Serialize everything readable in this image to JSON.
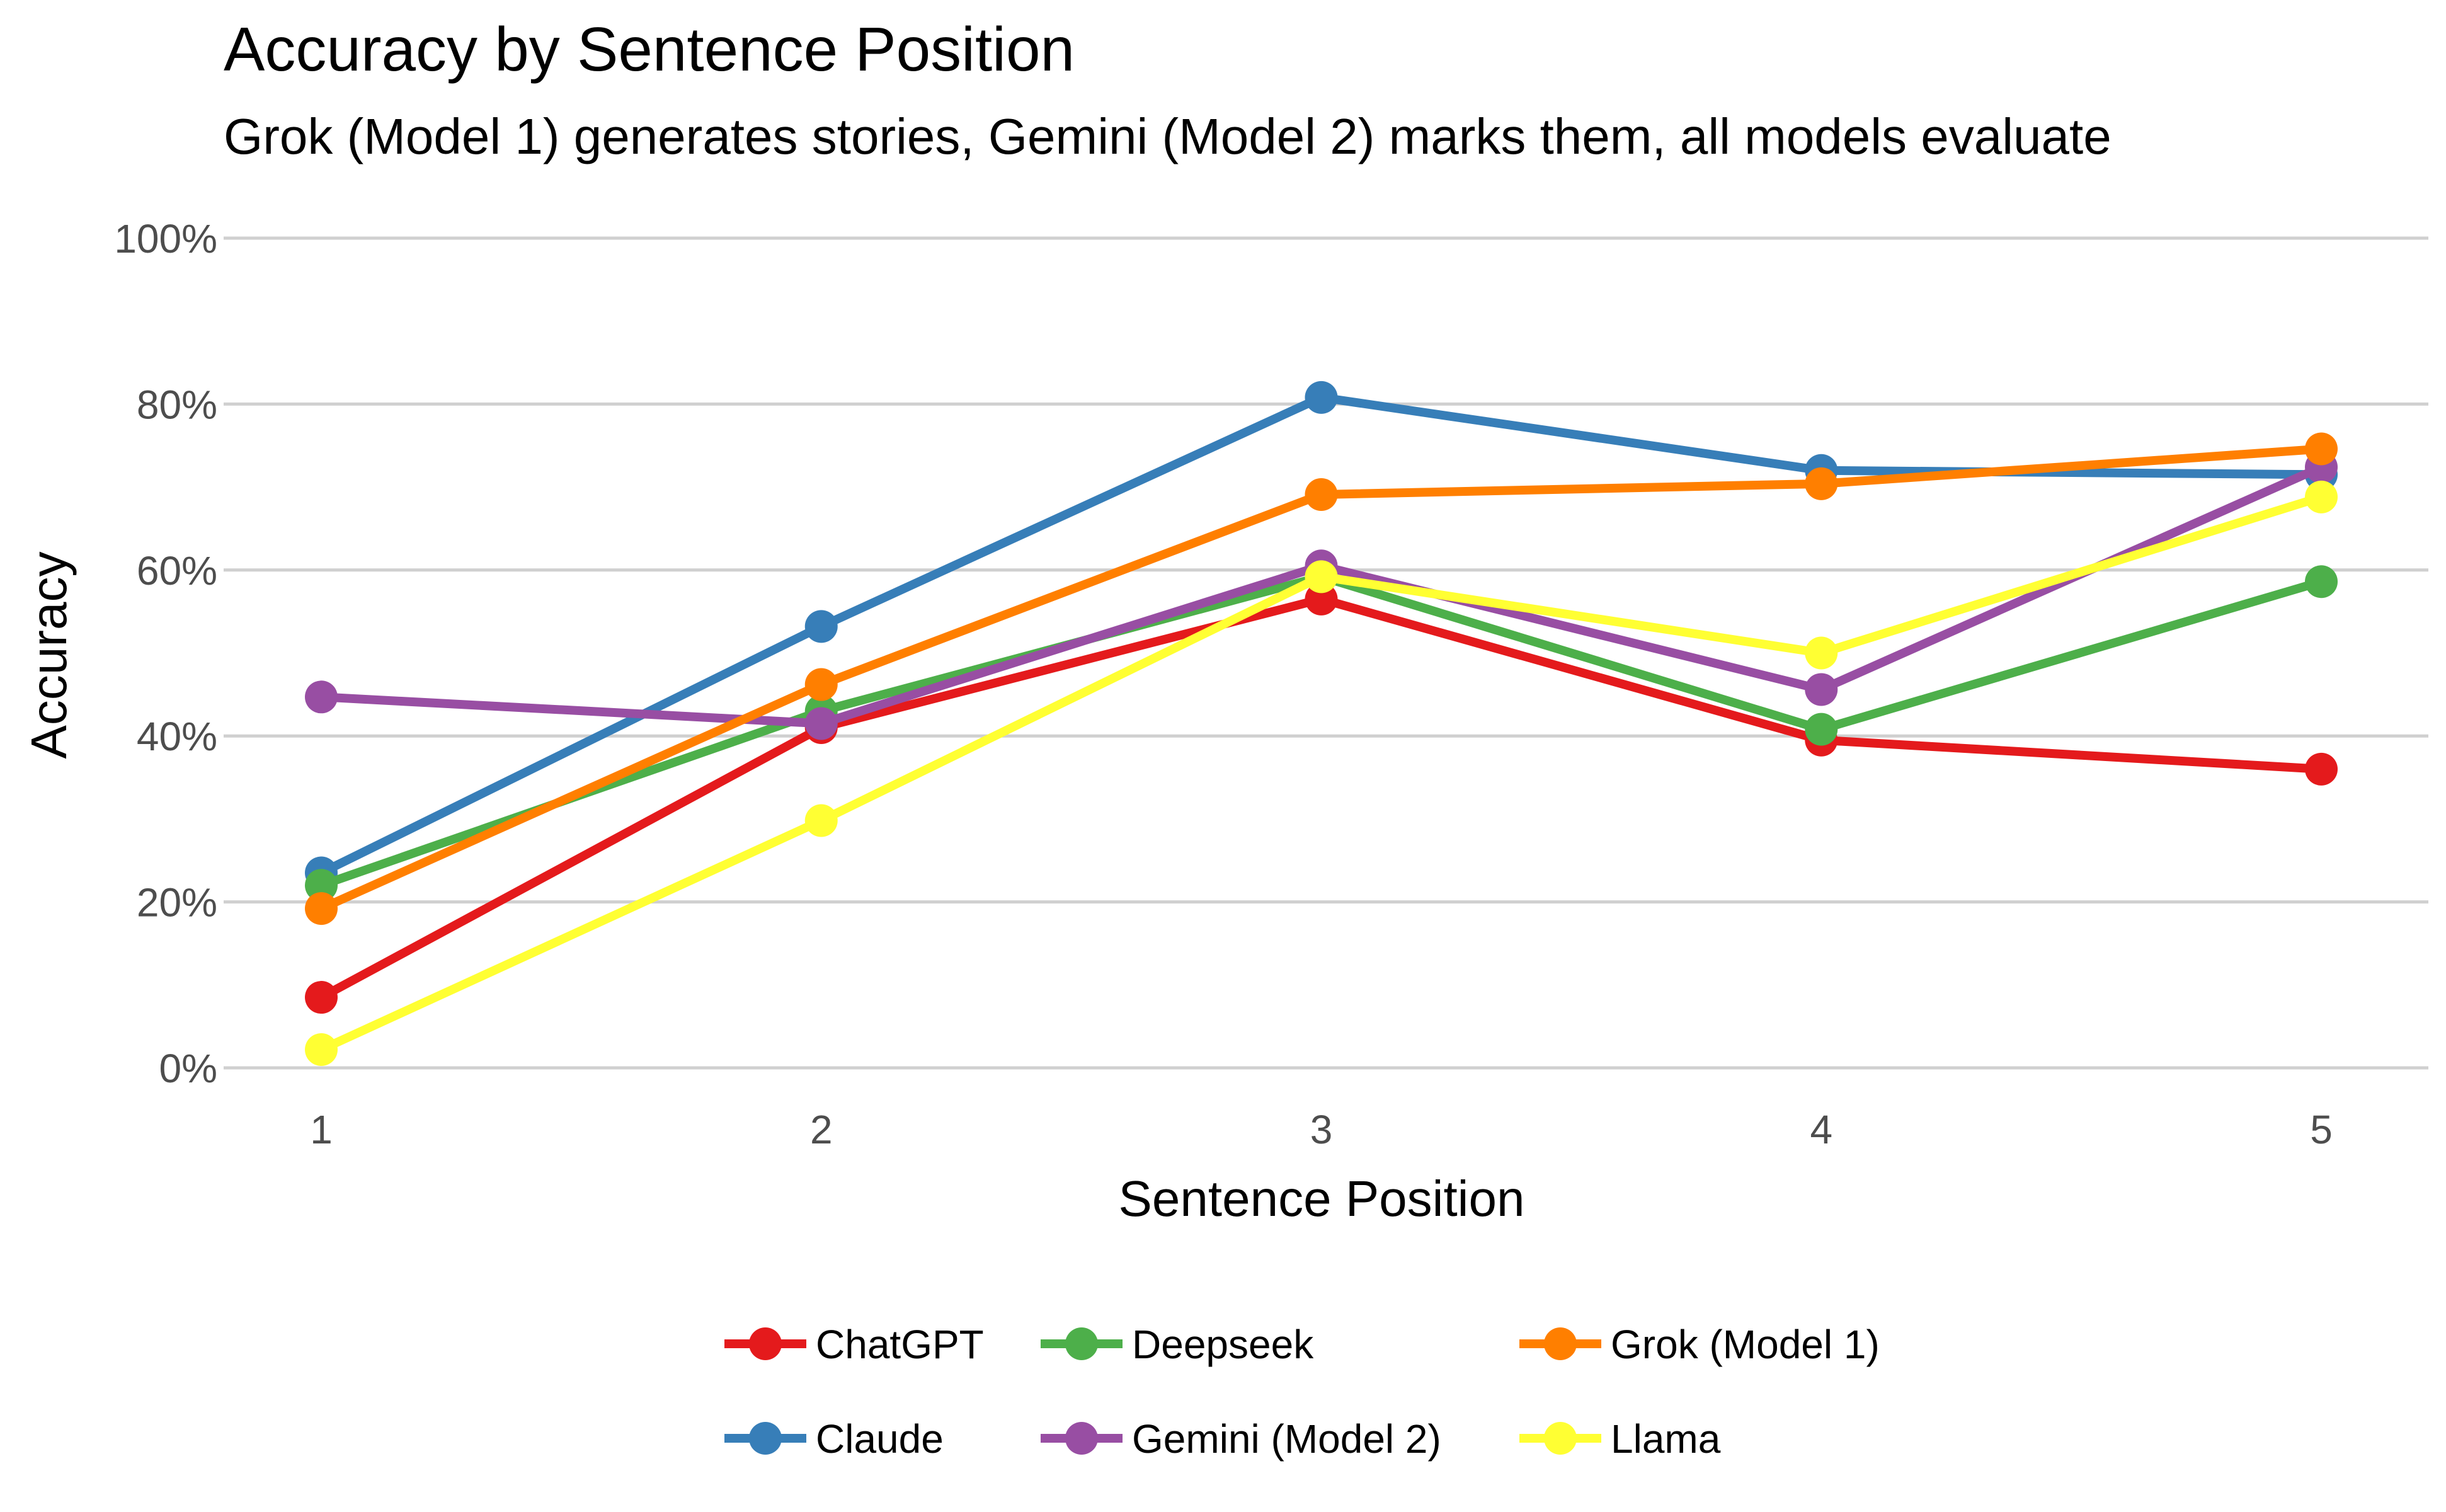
{
  "chart_data": {
    "type": "line",
    "title": "Accuracy by Sentence Position",
    "subtitle": "Grok (Model 1) generates stories, Gemini (Model 2) marks them, all models evaluate",
    "xlabel": "Sentence Position",
    "ylabel": "Accuracy",
    "x": [
      1,
      2,
      3,
      4,
      5
    ],
    "x_tick_labels": [
      "1",
      "2",
      "3",
      "4",
      "5"
    ],
    "ylim": [
      0,
      100
    ],
    "y_ticks": [
      0,
      20,
      40,
      60,
      80,
      100
    ],
    "y_tick_labels": [
      "0%",
      "20%",
      "40%",
      "60%",
      "80%",
      "100%"
    ],
    "grid": "horizontal",
    "legend_position": "bottom",
    "series": [
      {
        "name": "ChatGPT",
        "color": "#e41a1c",
        "values": [
          8.5,
          41,
          56.5,
          39.5,
          36
        ]
      },
      {
        "name": "Claude",
        "color": "#377eb8",
        "values": [
          23.5,
          53.2,
          80.8,
          72,
          71.5
        ]
      },
      {
        "name": "Deepseek",
        "color": "#4daf4a",
        "values": [
          22,
          43,
          59.2,
          40.8,
          58.6
        ]
      },
      {
        "name": "Gemini (Model 2)",
        "color": "#984ea3",
        "values": [
          44.7,
          41.5,
          60.5,
          45.6,
          72.4
        ]
      },
      {
        "name": "Grok (Model 1)",
        "color": "#ff7f00",
        "values": [
          19.2,
          46.2,
          69.1,
          70.4,
          74.6
        ]
      },
      {
        "name": "Llama",
        "color": "#ffff33",
        "values": [
          2.2,
          29.8,
          59.2,
          50,
          68.8
        ]
      }
    ]
  }
}
